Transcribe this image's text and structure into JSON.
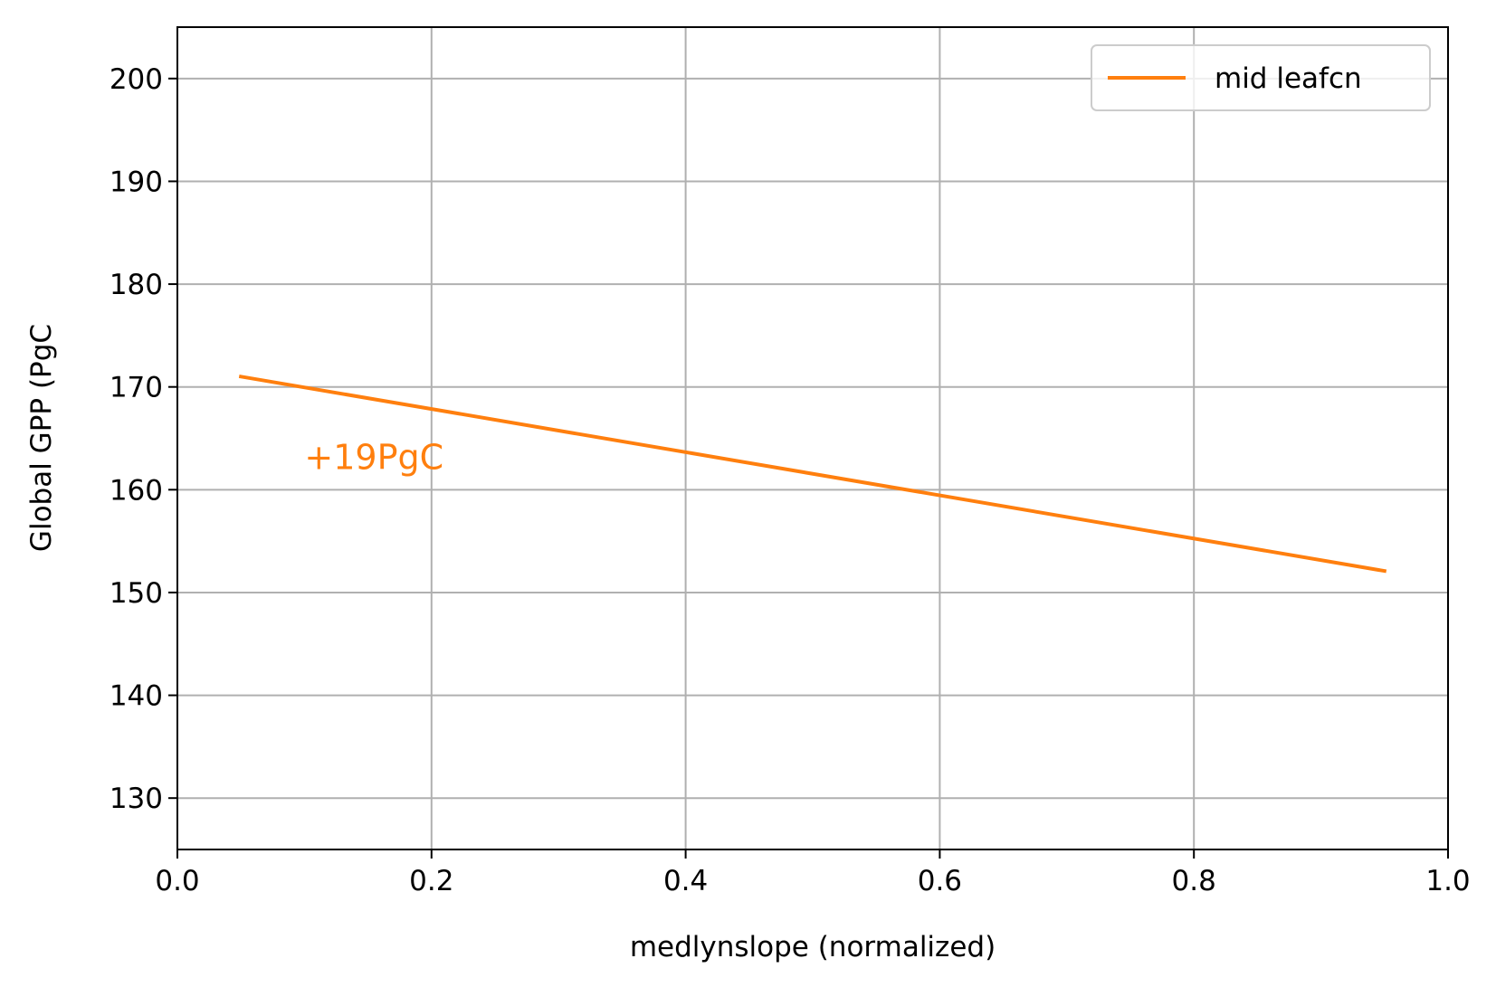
{
  "chart_data": {
    "type": "line",
    "xlabel": "medlynslope (normalized)",
    "ylabel": "Global GPP (PgC",
    "xlim": [
      0.0,
      1.0
    ],
    "ylim": [
      125,
      205
    ],
    "xticks": [
      0.0,
      0.2,
      0.4,
      0.6,
      0.8,
      1.0
    ],
    "xtick_labels": [
      "0.0",
      "0.2",
      "0.4",
      "0.6",
      "0.8",
      "1.0"
    ],
    "yticks": [
      130,
      140,
      150,
      160,
      170,
      180,
      190,
      200
    ],
    "ytick_labels": [
      "130",
      "140",
      "150",
      "160",
      "170",
      "180",
      "190",
      "200"
    ],
    "grid": true,
    "legend_position": "top-right",
    "series": [
      {
        "name": "mid leafcn",
        "color": "#ff7f0e",
        "x": [
          0.05,
          0.95
        ],
        "y": [
          171.0,
          152.1
        ]
      }
    ],
    "annotations": [
      {
        "text": "+19PgC",
        "x": 0.1,
        "y": 162.0,
        "color": "#ff7f0e"
      }
    ]
  }
}
